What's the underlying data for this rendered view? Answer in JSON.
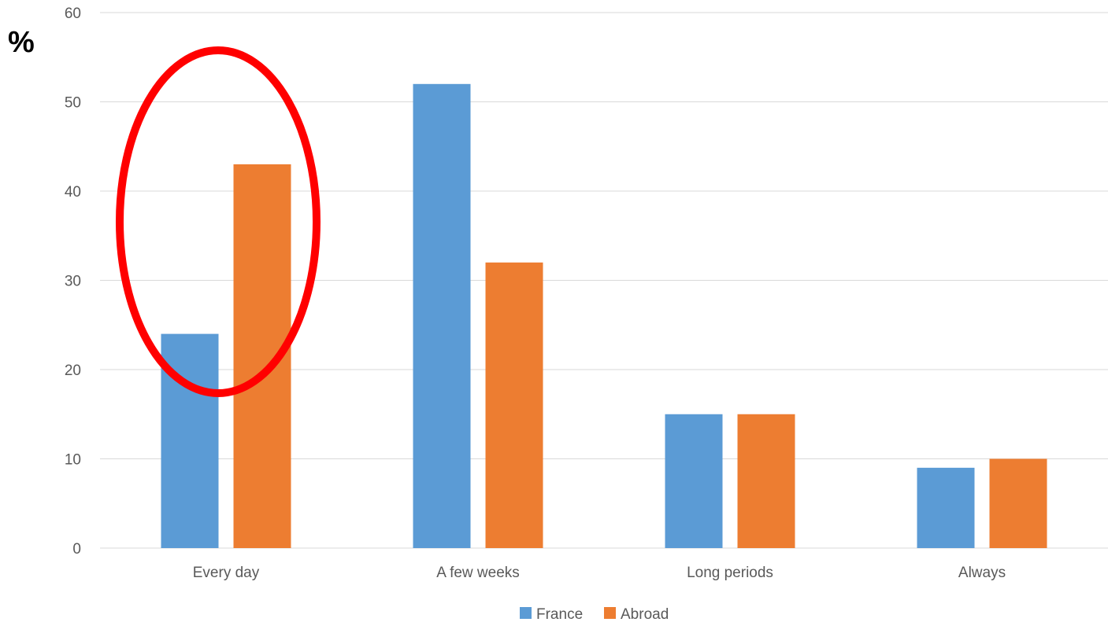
{
  "chart_data": {
    "type": "bar",
    "ylabel": "%",
    "categories": [
      "Every day",
      "A few weeks",
      "Long periods",
      "Always"
    ],
    "series": [
      {
        "name": "France",
        "color": "#5b9bd5",
        "values": [
          24,
          52,
          15,
          9
        ]
      },
      {
        "name": "Abroad",
        "color": "#ed7d31",
        "values": [
          43,
          32,
          15,
          10
        ]
      }
    ],
    "ylim": [
      0,
      60
    ],
    "yticks": [
      0,
      10,
      20,
      30,
      40,
      50,
      60
    ],
    "grid": true,
    "legend_position": "bottom",
    "annotation": {
      "shape": "ellipse",
      "color": "#ff0000",
      "highlights_category": "Every day"
    }
  }
}
